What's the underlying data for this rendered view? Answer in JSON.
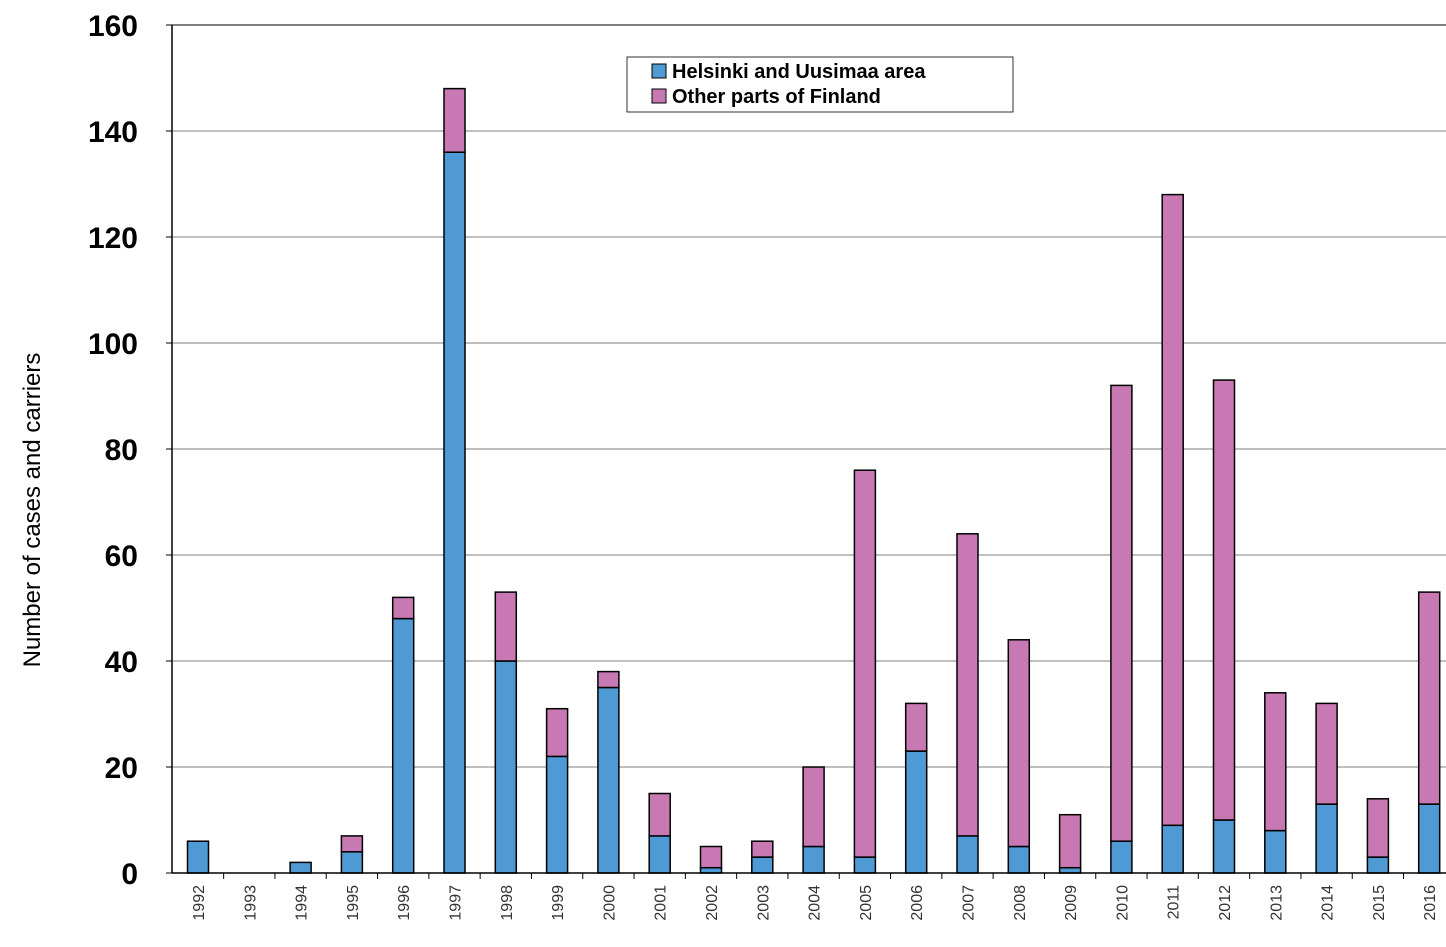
{
  "chart_data": {
    "type": "bar",
    "stacked": true,
    "title": "",
    "xlabel": "",
    "ylabel": "Number of cases and carriers",
    "ylim": [
      0,
      160
    ],
    "yticks": [
      "0",
      "20",
      "40",
      "60",
      "80",
      "100",
      "120",
      "140",
      "160"
    ],
    "grid": true,
    "legend_position": "top-center",
    "categories": [
      "1992",
      "1993",
      "1994",
      "1995",
      "1996",
      "1997",
      "1998",
      "1999",
      "2000",
      "2001",
      "2002",
      "2003",
      "2004",
      "2005",
      "2006",
      "2007",
      "2008",
      "2009",
      "2010",
      "2011",
      "2012",
      "2013",
      "2014",
      "2015",
      "2016"
    ],
    "series": [
      {
        "name": "Helsinki and Uusimaa area",
        "color": "#4f9ad4",
        "values": [
          6,
          0,
          2,
          4,
          48,
          136,
          40,
          22,
          35,
          7,
          1,
          3,
          5,
          3,
          23,
          7,
          5,
          1,
          6,
          9,
          10,
          8,
          13,
          3,
          13
        ]
      },
      {
        "name": "Other parts of Finland",
        "color": "#c878b2",
        "values": [
          0,
          0,
          0,
          3,
          4,
          12,
          13,
          9,
          3,
          8,
          4,
          3,
          15,
          73,
          9,
          57,
          39,
          10,
          86,
          119,
          83,
          26,
          19,
          11,
          40
        ]
      }
    ]
  }
}
